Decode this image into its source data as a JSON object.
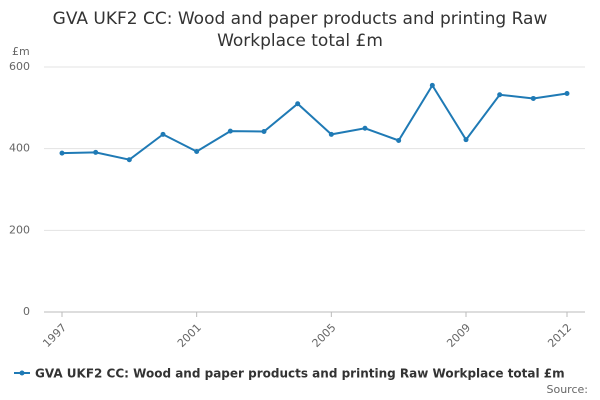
{
  "chart_data": {
    "type": "line",
    "title": "GVA UKF2 CC: Wood and paper products and printing Raw Workplace total £m",
    "y_label": "£m",
    "x": [
      1997,
      1998,
      1999,
      2000,
      2001,
      2002,
      2003,
      2004,
      2005,
      2006,
      2007,
      2008,
      2009,
      2010,
      2011,
      2012
    ],
    "series": [
      {
        "name": "GVA UKF2 CC: Wood and paper products and printing Raw Workplace total £m",
        "color": "#1f7ab5",
        "values": [
          389,
          391,
          373,
          435,
          393,
          443,
          442,
          510,
          435,
          450,
          420,
          555,
          422,
          532,
          523,
          535
        ]
      }
    ],
    "xlim": [
      1997,
      2012
    ],
    "xticks": [
      1997,
      2001,
      2005,
      2009,
      2012
    ],
    "ylim": [
      0,
      600
    ],
    "yticks": [
      0,
      200,
      400,
      600
    ],
    "grid": true,
    "source": "Source:"
  }
}
